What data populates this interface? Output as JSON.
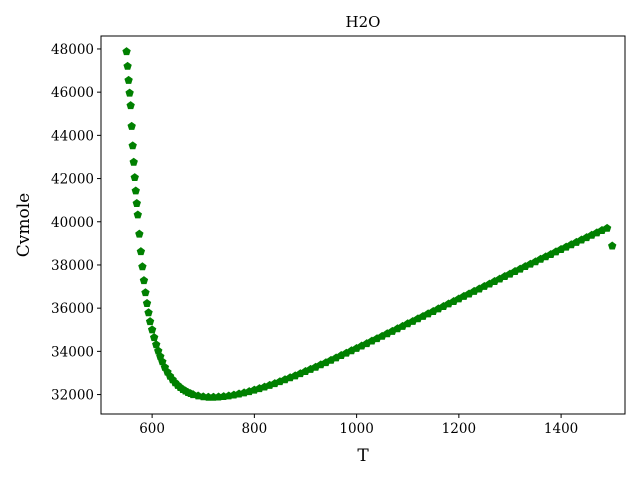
{
  "colors": {
    "marker": "#008000",
    "axis": "#000000",
    "background": "#ffffff"
  },
  "chart_data": {
    "type": "scatter",
    "title": "H2O",
    "xlabel": "T",
    "ylabel": "Cvmole",
    "xlim": [
      500,
      1525
    ],
    "ylim": [
      31100,
      48600
    ],
    "xticks": [
      600,
      800,
      1000,
      1200,
      1400
    ],
    "xtick_labels": [
      "600",
      "800",
      "1000",
      "1200",
      "1400"
    ],
    "yticks": [
      32000,
      34000,
      36000,
      38000,
      40000,
      42000,
      44000,
      46000,
      48000
    ],
    "ytick_labels": [
      "32000",
      "34000",
      "36000",
      "38000",
      "40000",
      "42000",
      "44000",
      "46000",
      "48000"
    ],
    "grid": false,
    "marker": "pentagon",
    "series": [
      {
        "x": [
          550,
          552,
          554,
          556,
          558,
          560,
          562,
          564,
          566,
          568,
          570,
          572,
          575,
          578,
          581,
          584,
          587,
          590,
          593,
          596,
          600,
          604,
          608,
          612,
          616,
          620,
          625,
          630,
          635,
          640,
          645,
          650,
          655,
          660,
          665,
          670,
          675,
          680,
          690,
          700,
          710,
          720,
          730,
          740,
          750,
          760,
          770,
          780,
          790,
          800,
          810,
          820,
          830,
          840,
          850,
          860,
          870,
          880,
          890,
          900,
          910,
          920,
          930,
          940,
          950,
          960,
          970,
          980,
          990,
          1000,
          1010,
          1020,
          1030,
          1040,
          1050,
          1060,
          1070,
          1080,
          1090,
          1100,
          1110,
          1120,
          1130,
          1140,
          1150,
          1160,
          1170,
          1180,
          1190,
          1200,
          1210,
          1220,
          1230,
          1240,
          1250,
          1260,
          1270,
          1280,
          1290,
          1300,
          1310,
          1320,
          1330,
          1340,
          1350,
          1360,
          1370,
          1380,
          1390,
          1400,
          1410,
          1420,
          1430,
          1440,
          1450,
          1460,
          1470,
          1480,
          1490,
          1500
        ],
        "y": [
          47880,
          47200,
          46550,
          45960,
          45380,
          44420,
          43520,
          42760,
          42050,
          41430,
          40850,
          40320,
          39430,
          38620,
          37920,
          37280,
          36720,
          36220,
          35790,
          35380,
          35000,
          34640,
          34310,
          34020,
          33760,
          33520,
          33260,
          33040,
          32850,
          32690,
          32550,
          32430,
          32330,
          32240,
          32170,
          32100,
          32050,
          32000,
          31940,
          31900,
          31880,
          31880,
          31890,
          31910,
          31940,
          31980,
          32030,
          32080,
          32140,
          32210,
          32280,
          32350,
          32430,
          32510,
          32600,
          32690,
          32780,
          32870,
          32970,
          33070,
          33170,
          33270,
          33380,
          33480,
          33590,
          33700,
          33810,
          33920,
          34030,
          34140,
          34250,
          34360,
          34480,
          34590,
          34700,
          34820,
          34930,
          35050,
          35160,
          35280,
          35390,
          35510,
          35620,
          35740,
          35850,
          35970,
          36080,
          36200,
          36310,
          36430,
          36550,
          36660,
          36780,
          36890,
          37010,
          37120,
          37240,
          37350,
          37470,
          37580,
          37700,
          37810,
          37930,
          38040,
          38150,
          38270,
          38380,
          38490,
          38610,
          38720,
          38830,
          38940,
          39050,
          39160,
          39270,
          39380,
          39490,
          39600,
          39700,
          38880
        ]
      }
    ]
  }
}
